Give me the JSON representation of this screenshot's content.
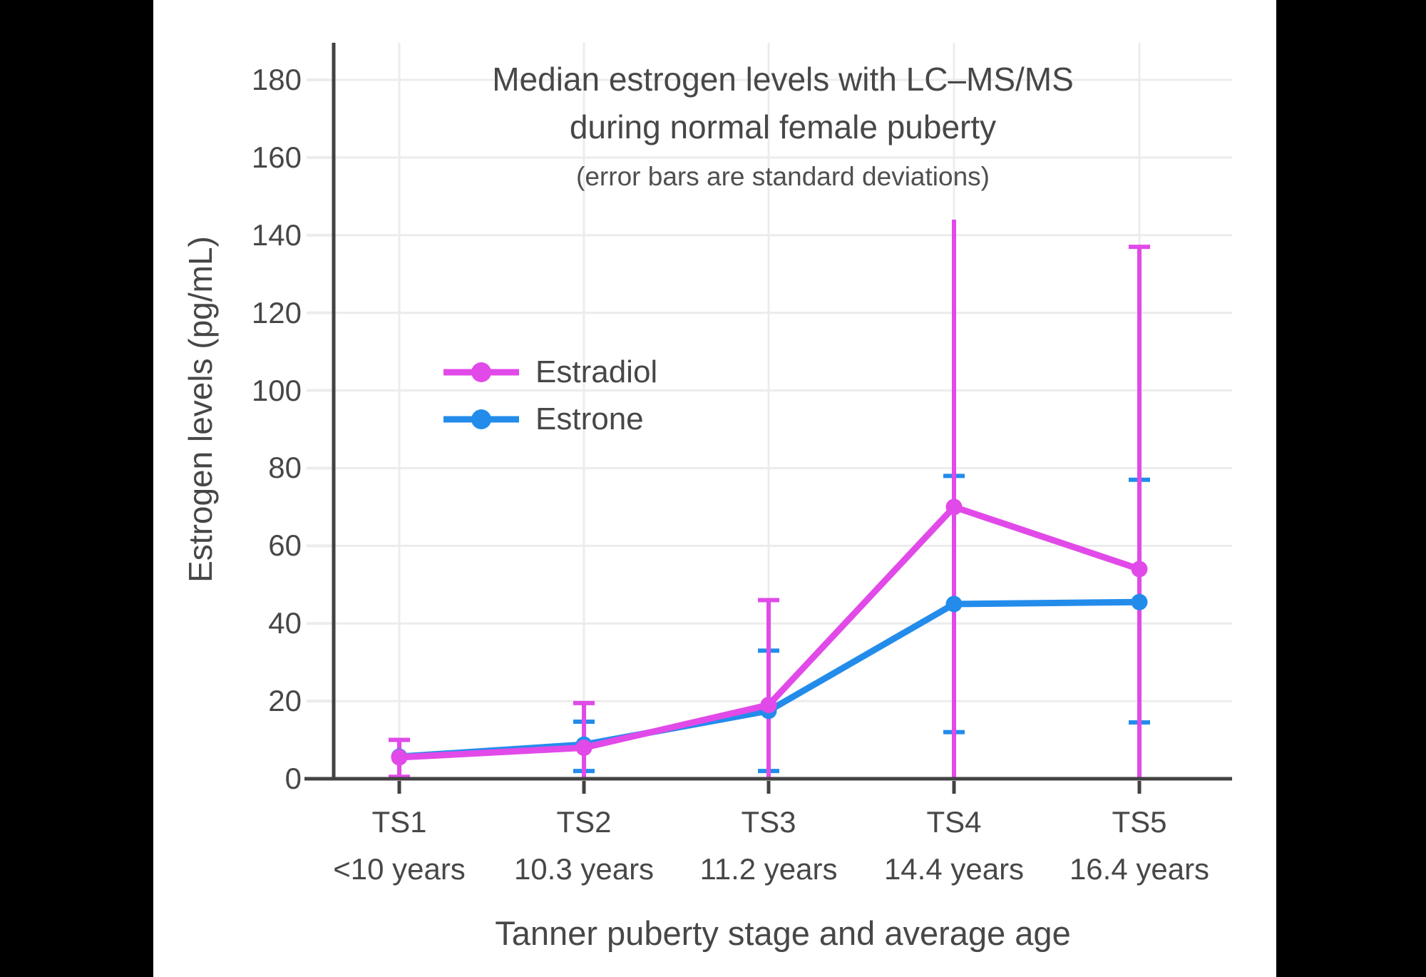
{
  "page": {
    "background_color": "#000000",
    "figure_background_color": "#ffffff"
  },
  "chart_data": {
    "type": "line",
    "title_line1": "Median estrogen levels with LC–MS/MS",
    "title_line2": "during normal female puberty",
    "subtitle": "(error bars are standard deviations)",
    "x_axis": {
      "title": "Tanner puberty stage and average age"
    },
    "y_axis": {
      "title": "Estrogen levels (pg/mL)",
      "ticks": [
        0,
        20,
        40,
        60,
        80,
        100,
        120,
        140,
        160,
        180
      ],
      "range": [
        0,
        190
      ],
      "grid": true
    },
    "categories": [
      {
        "stage": "TS1",
        "age": "<10 years"
      },
      {
        "stage": "TS2",
        "age": "10.3 years"
      },
      {
        "stage": "TS3",
        "age": "11.2 years"
      },
      {
        "stage": "TS4",
        "age": "14.4 years"
      },
      {
        "stage": "TS5",
        "age": "16.4 years"
      }
    ],
    "series": [
      {
        "name": "Estradiol",
        "color": "#e14ae8",
        "values": [
          5.5,
          8,
          19,
          70,
          54
        ],
        "error_bars": [
          {
            "low": 0.5,
            "high": 10,
            "low_cap": true,
            "high_cap": true
          },
          {
            "low": 0,
            "high": 19.5,
            "low_cap": false,
            "high_cap": true
          },
          {
            "low": 0,
            "high": 46,
            "low_cap": false,
            "high_cap": true
          },
          {
            "low": 0,
            "high": 144,
            "low_cap": false,
            "high_cap": false
          },
          {
            "low": 0,
            "high": 137,
            "low_cap": false,
            "high_cap": true
          }
        ]
      },
      {
        "name": "Estrone",
        "color": "#238ceb",
        "values": [
          5.7,
          8.8,
          17.5,
          45,
          45.5
        ],
        "error_bars": [
          null,
          {
            "low": 2,
            "high": 14.7,
            "low_cap": true,
            "high_cap": true
          },
          {
            "low": 2,
            "high": 33,
            "low_cap": true,
            "high_cap": true
          },
          {
            "low": 12,
            "high": 78,
            "low_cap": true,
            "high_cap": true
          },
          {
            "low": 14.5,
            "high": 77,
            "low_cap": true,
            "high_cap": true
          }
        ]
      }
    ],
    "legend": {
      "position": "inside-upper-left",
      "entries": [
        "Estradiol",
        "Estrone"
      ]
    },
    "colors": {
      "text": "#474747",
      "grid": "#ececec",
      "axis": "#424242"
    }
  }
}
